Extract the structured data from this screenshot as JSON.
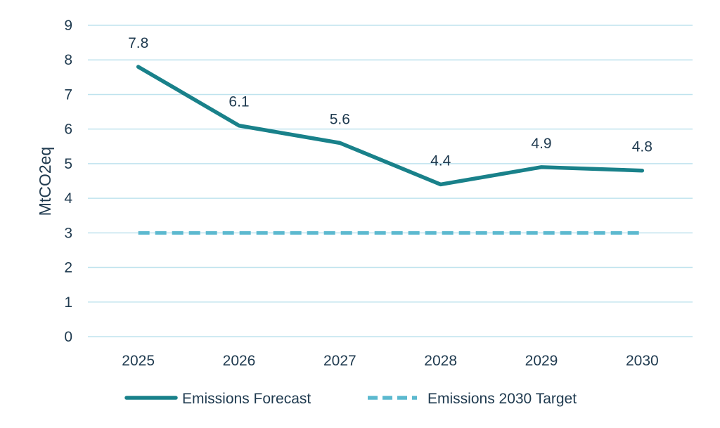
{
  "colors": {
    "forecast": "#19818a",
    "target": "#5cb9cf",
    "grid": "#bfe3ee",
    "text": "#1f3a4f"
  },
  "chart_data": {
    "type": "line",
    "categories": [
      "2025",
      "2026",
      "2027",
      "2028",
      "2029",
      "2030"
    ],
    "series": [
      {
        "name": "Emissions Forecast",
        "values": [
          7.8,
          6.1,
          5.6,
          4.4,
          4.9,
          4.8
        ],
        "style": "solid",
        "data_labels": [
          "7.8",
          "6.1",
          "5.6",
          "4.4",
          "4.9",
          "4.8"
        ]
      },
      {
        "name": "Emissions 2030 Target",
        "values": [
          3,
          3,
          3,
          3,
          3,
          3
        ],
        "style": "dashed"
      }
    ],
    "title": "",
    "xlabel": "",
    "ylabel": "MtCO2eq",
    "ylim": [
      0,
      9
    ],
    "yticks": [
      "0",
      "1",
      "2",
      "3",
      "4",
      "5",
      "6",
      "7",
      "8",
      "9"
    ],
    "grid": "horizontal",
    "legend": "bottom-center"
  }
}
